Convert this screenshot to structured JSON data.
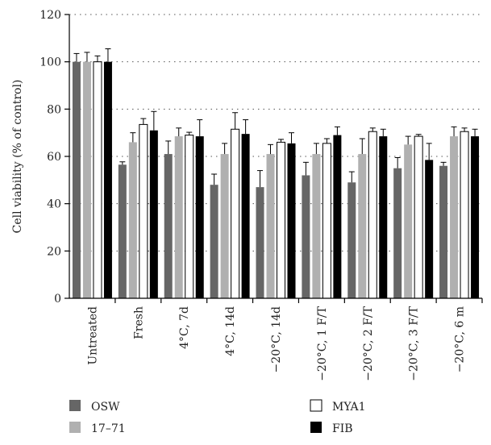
{
  "chart_data": {
    "type": "bar",
    "ylabel": "Cell viability (% of control)",
    "xlabel": "",
    "ylim": [
      0,
      120
    ],
    "yticks": [
      0,
      20,
      40,
      60,
      80,
      100,
      120
    ],
    "grid": "horizontal dotted",
    "legend_position": "bottom",
    "categories": [
      "Untreated",
      "Fresh",
      "4°C, 7d",
      "4°C, 14d",
      "−20°C, 14d",
      "−20°C, 1 F/T",
      "−20°C, 2 F/T",
      "−20°C, 3 F/T",
      "−20°C, 6 m"
    ],
    "series": [
      {
        "name": "OSW",
        "color": "#666666",
        "values": [
          100,
          56.5,
          61,
          48,
          47,
          52,
          49,
          55,
          56
        ],
        "errors": [
          3.5,
          1.2,
          5.5,
          4.5,
          7,
          5.5,
          4.5,
          4.5,
          1.5
        ]
      },
      {
        "name": "17–71",
        "color": "#b0b0b0",
        "values": [
          100,
          66,
          68.5,
          61,
          61,
          61,
          61,
          65,
          68.5
        ],
        "errors": [
          4,
          4,
          3.5,
          4.5,
          4,
          4.5,
          6.5,
          3.5,
          4
        ]
      },
      {
        "name": "MYA1",
        "color": "#ffffff",
        "values": [
          100,
          73.5,
          69,
          71.5,
          66,
          65.5,
          70.5,
          68.5,
          70.5
        ],
        "errors": [
          2.5,
          2.5,
          1.2,
          7,
          1.2,
          2,
          1.5,
          0.8,
          1.5
        ]
      },
      {
        "name": "FIB",
        "color": "#000000",
        "values": [
          100,
          71,
          68.5,
          69.5,
          65.5,
          69,
          68.5,
          58.5,
          68.5
        ],
        "errors": [
          5.5,
          8,
          7,
          6,
          4.5,
          3.5,
          3,
          7,
          3
        ]
      }
    ]
  }
}
